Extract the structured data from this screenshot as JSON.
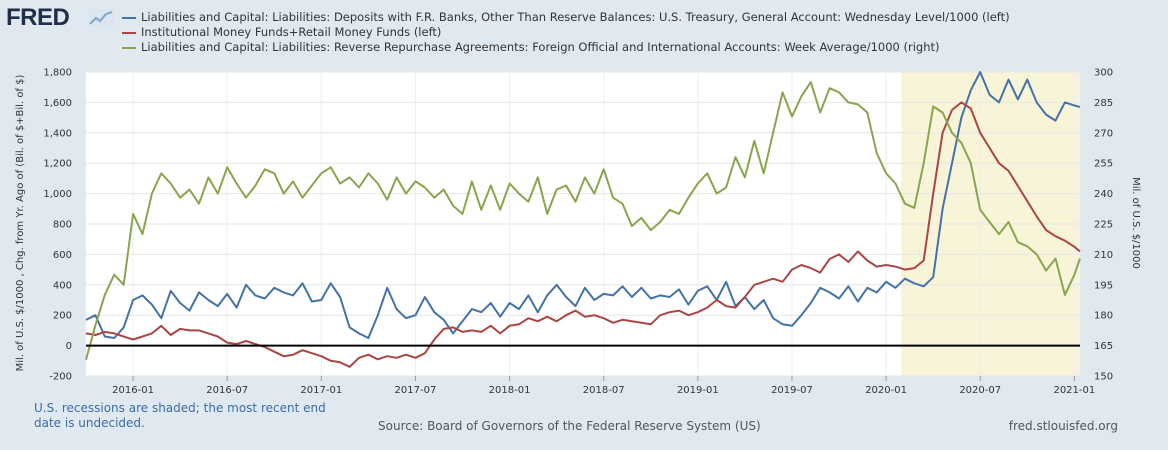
{
  "brand": {
    "logo_text": "FRED"
  },
  "chart_data": {
    "type": "line",
    "legend_position": "top",
    "y_left": {
      "label": "Mil. of U.S. $/1000 , Chg. from Yr. Ago of (Bil. of $+Bil. of $)",
      "range": [
        -200,
        1800
      ],
      "ticks": [
        -200,
        0,
        200,
        400,
        600,
        800,
        1000,
        1200,
        1400,
        1600,
        1800
      ],
      "tick_labels": [
        "-200",
        "0",
        "200",
        "400",
        "600",
        "800",
        "1,000",
        "1,200",
        "1,400",
        "1,600",
        "1,800"
      ]
    },
    "y_right": {
      "label": "Mil. of U.S. $/1000",
      "range": [
        150,
        300
      ],
      "ticks": [
        150,
        165,
        180,
        195,
        210,
        225,
        240,
        255,
        270,
        285,
        300
      ],
      "tick_labels": [
        "150",
        "165",
        "180",
        "195",
        "210",
        "225",
        "240",
        "255",
        "270",
        "285",
        "300"
      ]
    },
    "x_range": [
      2015.75,
      2021.03
    ],
    "x_ticks": [
      2016.0,
      2016.5,
      2017.0,
      2017.5,
      2018.0,
      2018.5,
      2019.0,
      2019.5,
      2020.0,
      2020.5,
      2021.0
    ],
    "x_tick_labels": [
      "2016-01",
      "2016-07",
      "2017-01",
      "2017-07",
      "2018-01",
      "2018-07",
      "2019-01",
      "2019-07",
      "2020-01",
      "2020-07",
      "2021-01"
    ],
    "recession": {
      "start": 2020.08,
      "end": 2021.03
    },
    "series": [
      {
        "name": "Liabilities and Capital: Liabilities: Deposits with F.R. Banks, Other Than Reserve Balances: U.S. Treasury, General Account: Wednesday Level/1000 (left)",
        "axis": "left",
        "color": "#4572a7",
        "x": [
          2015.75,
          2015.8,
          2015.85,
          2015.9,
          2015.95,
          2016.0,
          2016.05,
          2016.1,
          2016.15,
          2016.2,
          2016.25,
          2016.3,
          2016.35,
          2016.4,
          2016.45,
          2016.5,
          2016.55,
          2016.6,
          2016.65,
          2016.7,
          2016.75,
          2016.8,
          2016.85,
          2016.9,
          2016.95,
          2017.0,
          2017.05,
          2017.1,
          2017.15,
          2017.2,
          2017.25,
          2017.3,
          2017.35,
          2017.4,
          2017.45,
          2017.5,
          2017.55,
          2017.6,
          2017.65,
          2017.7,
          2017.75,
          2017.8,
          2017.85,
          2017.9,
          2017.95,
          2018.0,
          2018.05,
          2018.1,
          2018.15,
          2018.2,
          2018.25,
          2018.3,
          2018.35,
          2018.4,
          2018.45,
          2018.5,
          2018.55,
          2018.6,
          2018.65,
          2018.7,
          2018.75,
          2018.8,
          2018.85,
          2018.9,
          2018.95,
          2019.0,
          2019.05,
          2019.1,
          2019.15,
          2019.2,
          2019.25,
          2019.3,
          2019.35,
          2019.4,
          2019.45,
          2019.5,
          2019.55,
          2019.6,
          2019.65,
          2019.7,
          2019.75,
          2019.8,
          2019.85,
          2019.9,
          2019.95,
          2020.0,
          2020.05,
          2020.1,
          2020.15,
          2020.2,
          2020.25,
          2020.3,
          2020.35,
          2020.4,
          2020.45,
          2020.5,
          2020.55,
          2020.6,
          2020.65,
          2020.7,
          2020.75,
          2020.8,
          2020.85,
          2020.9,
          2020.95,
          2021.0,
          2021.03
        ],
        "values": [
          170,
          200,
          60,
          50,
          120,
          300,
          330,
          270,
          180,
          360,
          280,
          230,
          350,
          300,
          260,
          340,
          250,
          400,
          330,
          310,
          380,
          350,
          330,
          410,
          290,
          300,
          410,
          320,
          120,
          80,
          50,
          200,
          380,
          240,
          180,
          200,
          320,
          220,
          170,
          80,
          160,
          240,
          220,
          280,
          190,
          280,
          240,
          330,
          220,
          330,
          400,
          320,
          260,
          380,
          300,
          340,
          330,
          390,
          320,
          380,
          310,
          330,
          320,
          370,
          270,
          360,
          390,
          300,
          420,
          260,
          320,
          240,
          300,
          180,
          140,
          130,
          200,
          280,
          380,
          350,
          310,
          390,
          290,
          380,
          350,
          420,
          380,
          440,
          410,
          390,
          450,
          900,
          1200,
          1500,
          1680,
          1800,
          1650,
          1600,
          1750,
          1620,
          1750,
          1600,
          1520,
          1480,
          1600,
          1580,
          1570
        ]
      },
      {
        "name": "Institutional Money Funds+Retail Money Funds (left)",
        "axis": "left",
        "color": "#aa4643",
        "x": [
          2015.75,
          2015.8,
          2015.85,
          2015.9,
          2015.95,
          2016.0,
          2016.05,
          2016.1,
          2016.15,
          2016.2,
          2016.25,
          2016.3,
          2016.35,
          2016.4,
          2016.45,
          2016.5,
          2016.55,
          2016.6,
          2016.65,
          2016.7,
          2016.75,
          2016.8,
          2016.85,
          2016.9,
          2016.95,
          2017.0,
          2017.05,
          2017.1,
          2017.15,
          2017.2,
          2017.25,
          2017.3,
          2017.35,
          2017.4,
          2017.45,
          2017.5,
          2017.55,
          2017.6,
          2017.65,
          2017.7,
          2017.75,
          2017.8,
          2017.85,
          2017.9,
          2017.95,
          2018.0,
          2018.05,
          2018.1,
          2018.15,
          2018.2,
          2018.25,
          2018.3,
          2018.35,
          2018.4,
          2018.45,
          2018.5,
          2018.55,
          2018.6,
          2018.65,
          2018.7,
          2018.75,
          2018.8,
          2018.85,
          2018.9,
          2018.95,
          2019.0,
          2019.05,
          2019.1,
          2019.15,
          2019.2,
          2019.25,
          2019.3,
          2019.35,
          2019.4,
          2019.45,
          2019.5,
          2019.55,
          2019.6,
          2019.65,
          2019.7,
          2019.75,
          2019.8,
          2019.85,
          2019.9,
          2019.95,
          2020.0,
          2020.05,
          2020.1,
          2020.15,
          2020.2,
          2020.25,
          2020.3,
          2020.35,
          2020.4,
          2020.45,
          2020.5,
          2020.55,
          2020.6,
          2020.65,
          2020.7,
          2020.75,
          2020.8,
          2020.85,
          2020.9,
          2020.95,
          2021.0,
          2021.03
        ],
        "values": [
          80,
          70,
          90,
          80,
          60,
          40,
          60,
          80,
          130,
          70,
          110,
          100,
          100,
          80,
          60,
          20,
          10,
          30,
          10,
          -10,
          -40,
          -70,
          -60,
          -30,
          -50,
          -70,
          -100,
          -110,
          -140,
          -80,
          -60,
          -90,
          -70,
          -80,
          -60,
          -80,
          -50,
          40,
          110,
          120,
          90,
          100,
          90,
          130,
          80,
          130,
          140,
          180,
          160,
          190,
          160,
          200,
          230,
          190,
          200,
          180,
          150,
          170,
          160,
          150,
          140,
          200,
          220,
          230,
          200,
          220,
          250,
          300,
          260,
          250,
          320,
          400,
          420,
          440,
          420,
          500,
          530,
          510,
          480,
          570,
          600,
          550,
          620,
          560,
          520,
          530,
          520,
          500,
          510,
          560,
          1000,
          1400,
          1550,
          1600,
          1560,
          1400,
          1300,
          1200,
          1150,
          1050,
          950,
          850,
          760,
          720,
          690,
          650,
          620
        ]
      },
      {
        "name": "Liabilities and Capital: Liabilities: Reverse Repurchase Agreements: Foreign Official and International Accounts: Week Average/1000 (right)",
        "axis": "right",
        "color": "#89a54e",
        "x": [
          2015.75,
          2015.8,
          2015.85,
          2015.9,
          2015.95,
          2016.0,
          2016.05,
          2016.1,
          2016.15,
          2016.2,
          2016.25,
          2016.3,
          2016.35,
          2016.4,
          2016.45,
          2016.5,
          2016.55,
          2016.6,
          2016.65,
          2016.7,
          2016.75,
          2016.8,
          2016.85,
          2016.9,
          2016.95,
          2017.0,
          2017.05,
          2017.1,
          2017.15,
          2017.2,
          2017.25,
          2017.3,
          2017.35,
          2017.4,
          2017.45,
          2017.5,
          2017.55,
          2017.6,
          2017.65,
          2017.7,
          2017.75,
          2017.8,
          2017.85,
          2017.9,
          2017.95,
          2018.0,
          2018.05,
          2018.1,
          2018.15,
          2018.2,
          2018.25,
          2018.3,
          2018.35,
          2018.4,
          2018.45,
          2018.5,
          2018.55,
          2018.6,
          2018.65,
          2018.7,
          2018.75,
          2018.8,
          2018.85,
          2018.9,
          2018.95,
          2019.0,
          2019.05,
          2019.1,
          2019.15,
          2019.2,
          2019.25,
          2019.3,
          2019.35,
          2019.4,
          2019.45,
          2019.5,
          2019.55,
          2019.6,
          2019.65,
          2019.7,
          2019.75,
          2019.8,
          2019.85,
          2019.9,
          2019.95,
          2020.0,
          2020.05,
          2020.1,
          2020.15,
          2020.2,
          2020.25,
          2020.3,
          2020.35,
          2020.4,
          2020.45,
          2020.5,
          2020.55,
          2020.6,
          2020.65,
          2020.7,
          2020.75,
          2020.8,
          2020.85,
          2020.9,
          2020.95,
          2021.0,
          2021.03
        ],
        "values": [
          158,
          175,
          190,
          200,
          195,
          230,
          220,
          240,
          250,
          245,
          238,
          242,
          235,
          248,
          240,
          253,
          245,
          238,
          244,
          252,
          250,
          240,
          246,
          238,
          244,
          250,
          253,
          245,
          248,
          243,
          250,
          245,
          237,
          248,
          240,
          246,
          243,
          238,
          242,
          234,
          230,
          246,
          232,
          244,
          232,
          245,
          240,
          236,
          248,
          230,
          242,
          244,
          236,
          248,
          240,
          252,
          238,
          235,
          224,
          228,
          222,
          226,
          232,
          230,
          238,
          245,
          250,
          240,
          243,
          258,
          248,
          266,
          250,
          270,
          290,
          278,
          288,
          295,
          280,
          292,
          290,
          285,
          284,
          280,
          260,
          250,
          245,
          235,
          233,
          255,
          283,
          280,
          270,
          265,
          255,
          232,
          226,
          220,
          226,
          216,
          214,
          210,
          202,
          208,
          190,
          200,
          208
        ]
      }
    ]
  },
  "footer": {
    "recession_note": "U.S. recessions are shaded; the most recent end date is undecided.",
    "source": "Source: Board of Governors of the Federal Reserve System (US)",
    "url": "fred.stlouisfed.org"
  }
}
